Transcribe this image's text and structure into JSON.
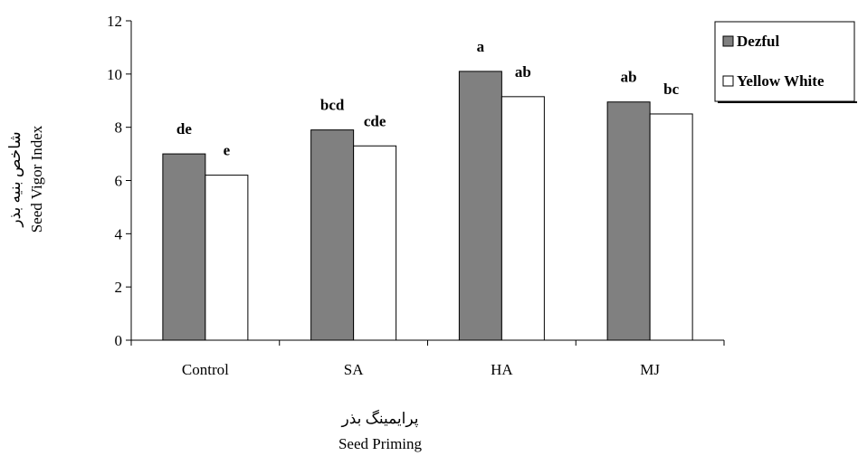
{
  "chart_data": {
    "type": "bar",
    "categories": [
      "Control",
      "SA",
      "HA",
      "MJ"
    ],
    "series": [
      {
        "name": "Dezful",
        "values": [
          7.0,
          7.9,
          10.1,
          8.95
        ],
        "labels": [
          "de",
          "bcd",
          "a",
          "ab"
        ],
        "color": "#808080"
      },
      {
        "name": "Yellow White",
        "values": [
          6.2,
          7.3,
          9.15,
          8.5
        ],
        "labels": [
          "e",
          "cde",
          "ab",
          "bc"
        ],
        "color": "#ffffff"
      }
    ],
    "xlabel": [
      "پرایمینگ بذر",
      "Seed Priming"
    ],
    "ylabel": [
      "شاخص بنیه بذر",
      "Seed Vigor Index"
    ],
    "ylim": [
      0,
      12
    ],
    "yticks": [
      "0",
      "2",
      "4",
      "6",
      "8",
      "10",
      "12"
    ],
    "grid": false,
    "legend_position": "top-right"
  }
}
